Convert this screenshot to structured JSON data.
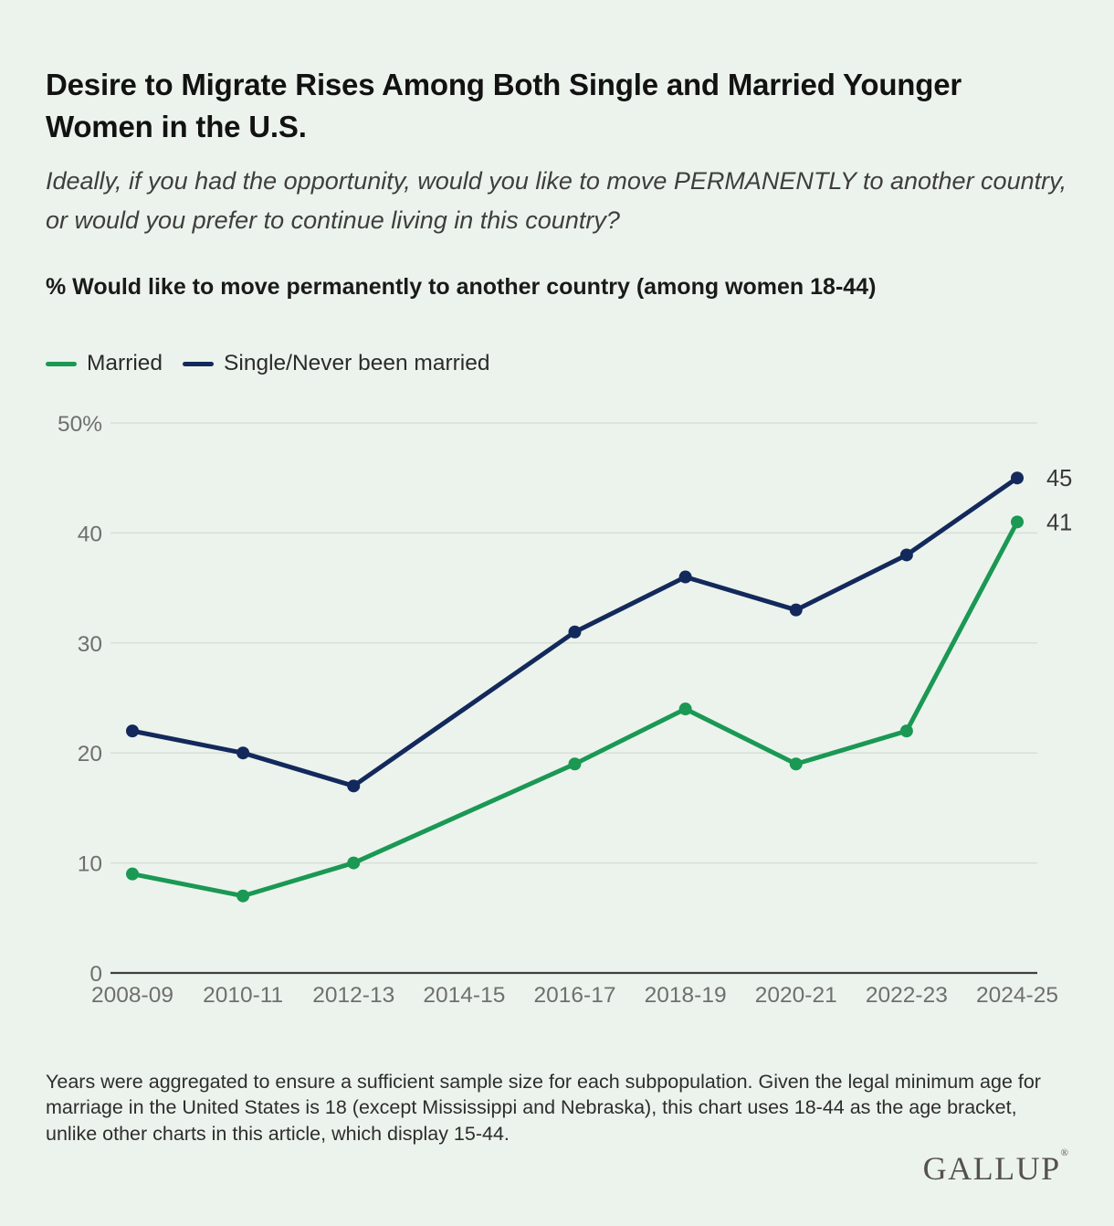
{
  "page": {
    "title": "Desire to Migrate Rises Among Both Single and Married Younger Women in the U.S.",
    "subtitle": "Ideally, if you had the opportunity, would you like to move PERMANENTLY to another country, or would you prefer to continue living in this country?",
    "footnote": "Years were aggregated to ensure a sufficient sample size for each subpopulation. Given the legal minimum age for marriage in the United States is 18 (except Mississippi and Nebraska), this chart uses 18-44 as the age bracket, unlike other charts in this article, which display 15-44.",
    "brand": "GALLUP",
    "brand_mark": "®"
  },
  "chart_data": {
    "type": "line",
    "title": "% Would like to move permanently to another country (among women 18-44)",
    "xlabel": "",
    "ylabel": "",
    "ylim": [
      0,
      50
    ],
    "grid": true,
    "legend_position": "top",
    "categories": [
      "2008-09",
      "2010-11",
      "2012-13",
      "2014-15",
      "2016-17",
      "2018-19",
      "2020-21",
      "2022-23",
      "2024-25"
    ],
    "yticks": [
      {
        "v": 50,
        "label": "50%"
      },
      {
        "v": 40,
        "label": "40"
      },
      {
        "v": 30,
        "label": "30"
      },
      {
        "v": 20,
        "label": "20"
      },
      {
        "v": 10,
        "label": "10"
      },
      {
        "v": 0,
        "label": "0"
      }
    ],
    "series": [
      {
        "id": "married",
        "name": "Married",
        "color": "#1A9854",
        "values": [
          9,
          7,
          10,
          null,
          19,
          24,
          19,
          22,
          41
        ],
        "end_label": "41"
      },
      {
        "id": "single",
        "name": "Single/Never been married",
        "color": "#13295C",
        "values": [
          22,
          20,
          17,
          null,
          31,
          36,
          33,
          38,
          45
        ],
        "end_label": "45"
      }
    ],
    "notes": "No data point plotted for 2014-15; lines connect 2012-13 directly to 2016-17."
  },
  "colors": {
    "background": "#ECF3EC",
    "grid": "#D9DED8",
    "axis": "#3F3F3F",
    "tick_label": "#6F6F6F",
    "value_label": "#3A3A3A",
    "title": "#121212",
    "subtitle": "#3E3E3E",
    "footnote": "#2D2D2D",
    "brand": "#54524B",
    "legend_text": "#2B2B2B"
  }
}
